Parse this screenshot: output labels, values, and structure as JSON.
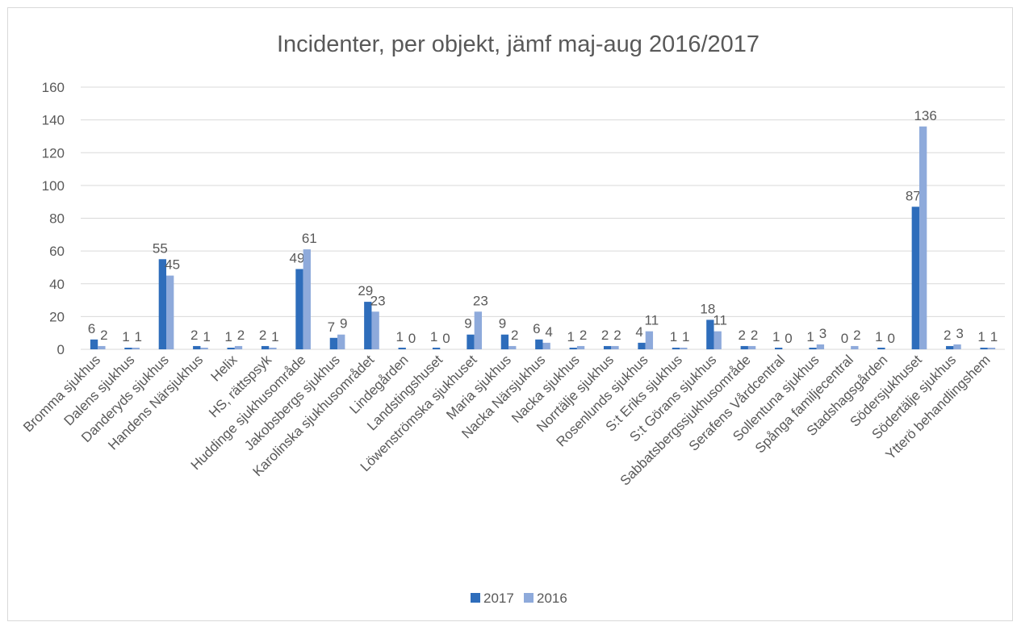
{
  "chart_data": {
    "type": "bar",
    "title": "Incidenter, per objekt, jämf maj-aug 2016/2017",
    "categories": [
      "Bromma sjukhus",
      "Dalens sjukhus",
      "Danderyds sjukhus",
      "Handens Närsjukhus",
      "Helix",
      "HS, rättspsyk",
      "Huddinge sjukhusområde",
      "Jakobsbergs sjukhus",
      "Karolinska sjukhusområdet",
      "Lindegården",
      "Landstingshuset",
      "Löwenströmska sjukhuset",
      "Maria sjukhus",
      "Nacka Närsjukhus",
      "Nacka sjukhus",
      "Norrtälje sjukhus",
      "Rosenlunds sjukhus",
      "S:t Eriks sjukhus",
      "S:t Görans sjukhus",
      "Sabbatsbergssjukhusområde",
      "Serafens Vårdcentral",
      "Sollentuna sjukhus",
      "Spånga familjecentral",
      "Stadshagsgården",
      "Södersjukhuset",
      "Södertälje sjukhus",
      "Ytterö behandlingshem"
    ],
    "series": [
      {
        "name": "2017",
        "color": "#2e6dbb",
        "values": [
          6,
          1,
          55,
          2,
          1,
          2,
          49,
          7,
          29,
          1,
          1,
          9,
          9,
          6,
          1,
          2,
          4,
          1,
          18,
          2,
          1,
          1,
          0,
          1,
          87,
          2,
          1
        ]
      },
      {
        "name": "2016",
        "color": "#8eaadb",
        "values": [
          2,
          1,
          45,
          1,
          2,
          1,
          61,
          9,
          23,
          0,
          0,
          23,
          2,
          4,
          2,
          2,
          11,
          1,
          11,
          2,
          0,
          3,
          2,
          0,
          136,
          3,
          1
        ]
      }
    ],
    "ylim": [
      0,
      160
    ],
    "yticks": [
      0,
      20,
      40,
      60,
      80,
      100,
      120,
      140,
      160
    ],
    "grid": true,
    "legend": "bottom"
  }
}
